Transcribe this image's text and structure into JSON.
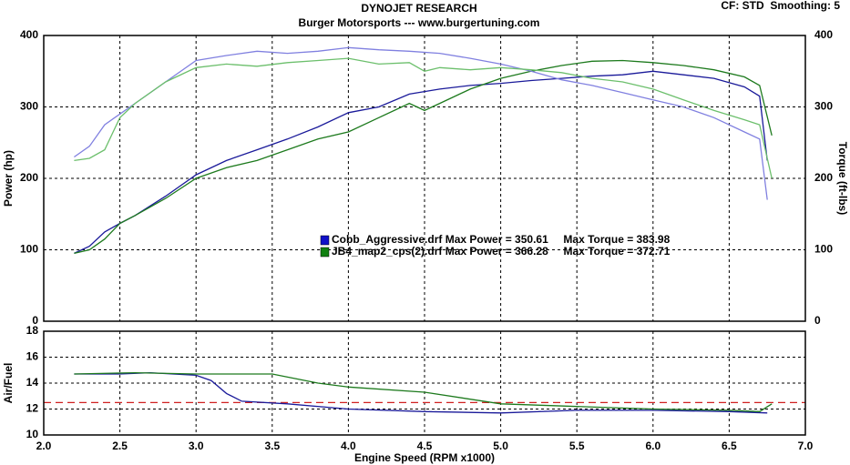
{
  "chart_data": [
    {
      "type": "line",
      "title": "DYNOJET RESEARCH",
      "subtitle": "Burger Motorsports --- www.burgertuning.com",
      "note": "CF: STD  Smoothing: 5",
      "ylabel": "Power (hp)",
      "y2label": "Torque (ft-lbs)",
      "xlim": [
        2,
        7
      ],
      "xticks": [
        2,
        2.5,
        3,
        3.5,
        4,
        4.5,
        5,
        5.5,
        6,
        6.5,
        7
      ],
      "ylim": [
        0,
        400
      ],
      "yticks": [
        0,
        100,
        200,
        300,
        400
      ],
      "y2lim": [
        0,
        400
      ],
      "y2ticks": [
        0,
        100,
        200,
        300,
        400
      ],
      "grid": true,
      "legend": [
        {
          "text": "Cobb_Aggressive.drf Max Power = 350.61     Max Torque = 383.98",
          "color": "#1010c8"
        },
        {
          "text": "JB4_map2_cps(2).drf Max Power = 366.28     Max Torque = 372.71",
          "color": "#108010"
        }
      ],
      "series": [
        {
          "color": "#1a1a9a",
          "axis": "y",
          "x": [
            2.2,
            2.3,
            2.4,
            2.5,
            2.6,
            2.8,
            3.0,
            3.2,
            3.4,
            3.6,
            3.8,
            4.0,
            4.2,
            4.4,
            4.6,
            4.8,
            5.0,
            5.2,
            5.4,
            5.6,
            5.8,
            6.0,
            6.2,
            6.4,
            6.6,
            6.7,
            6.75
          ],
          "values": [
            95,
            105,
            125,
            137,
            148,
            175,
            205,
            225,
            240,
            255,
            272,
            292,
            300,
            318,
            325,
            330,
            333,
            337,
            340,
            343,
            345,
            350,
            345,
            340,
            328,
            315,
            225
          ]
        },
        {
          "color": "#1d7a1d",
          "axis": "y",
          "x": [
            2.2,
            2.3,
            2.4,
            2.5,
            2.6,
            2.8,
            3.0,
            3.2,
            3.4,
            3.6,
            3.8,
            4.0,
            4.2,
            4.4,
            4.5,
            4.6,
            4.8,
            5.0,
            5.2,
            5.4,
            5.6,
            5.8,
            6.0,
            6.2,
            6.4,
            6.6,
            6.7,
            6.78
          ],
          "values": [
            95,
            100,
            115,
            137,
            148,
            172,
            200,
            215,
            225,
            240,
            255,
            265,
            285,
            305,
            295,
            305,
            325,
            340,
            350,
            358,
            364,
            365,
            362,
            358,
            352,
            342,
            330,
            260
          ]
        },
        {
          "color": "#8080e0",
          "axis": "y2",
          "x": [
            2.2,
            2.3,
            2.4,
            2.5,
            2.6,
            2.8,
            3.0,
            3.2,
            3.4,
            3.6,
            3.8,
            4.0,
            4.2,
            4.4,
            4.6,
            4.8,
            5.0,
            5.2,
            5.4,
            5.6,
            5.8,
            6.0,
            6.2,
            6.4,
            6.6,
            6.7,
            6.75
          ],
          "values": [
            230,
            245,
            275,
            290,
            305,
            335,
            365,
            372,
            378,
            375,
            378,
            383,
            380,
            378,
            375,
            368,
            360,
            350,
            338,
            330,
            320,
            310,
            300,
            285,
            265,
            255,
            170
          ]
        },
        {
          "color": "#6cbf6c",
          "axis": "y2",
          "x": [
            2.2,
            2.3,
            2.4,
            2.5,
            2.6,
            2.8,
            3.0,
            3.2,
            3.4,
            3.6,
            3.8,
            4.0,
            4.2,
            4.4,
            4.5,
            4.6,
            4.8,
            5.0,
            5.2,
            5.4,
            5.6,
            5.8,
            6.0,
            6.2,
            6.4,
            6.6,
            6.7,
            6.78
          ],
          "values": [
            225,
            228,
            240,
            285,
            305,
            335,
            355,
            360,
            357,
            362,
            365,
            368,
            360,
            362,
            350,
            355,
            352,
            355,
            352,
            348,
            340,
            335,
            325,
            310,
            295,
            282,
            275,
            200
          ]
        }
      ]
    },
    {
      "type": "line",
      "ylabel": "Air/Fuel",
      "xlabel": "Engine Speed (RPM x1000)",
      "xlim": [
        2,
        7
      ],
      "xticks": [
        {
          "value": 2,
          "label": "2.0"
        },
        2.5,
        {
          "value": 3,
          "label": "3.0"
        },
        3.5,
        {
          "value": 4,
          "label": "4.0"
        },
        4.5,
        {
          "value": 5,
          "label": "5.0"
        },
        5.5,
        {
          "value": 6,
          "label": "6.0"
        },
        6.5,
        {
          "value": 7,
          "label": "7.0"
        }
      ],
      "ylim": [
        10,
        18
      ],
      "yticks": [
        10,
        12,
        14,
        16,
        18
      ],
      "grid": true,
      "hline": 12.5,
      "hline_color": "#d02020",
      "series": [
        {
          "color": "#1a1a9a",
          "x": [
            2.2,
            2.5,
            2.7,
            3.0,
            3.1,
            3.2,
            3.3,
            3.6,
            4.0,
            4.5,
            5.0,
            5.5,
            6.0,
            6.5,
            6.75
          ],
          "values": [
            14.7,
            14.7,
            14.8,
            14.6,
            14.2,
            13.2,
            12.6,
            12.4,
            12.0,
            11.8,
            11.7,
            11.9,
            11.9,
            11.8,
            11.7
          ]
        },
        {
          "color": "#1d7a1d",
          "x": [
            2.2,
            2.6,
            3.0,
            3.5,
            3.8,
            4.0,
            4.5,
            5.0,
            5.5,
            6.0,
            6.5,
            6.7,
            6.78
          ],
          "values": [
            14.7,
            14.8,
            14.7,
            14.7,
            14.0,
            13.7,
            13.3,
            12.4,
            12.2,
            12.0,
            11.9,
            11.8,
            12.4
          ]
        }
      ]
    }
  ]
}
